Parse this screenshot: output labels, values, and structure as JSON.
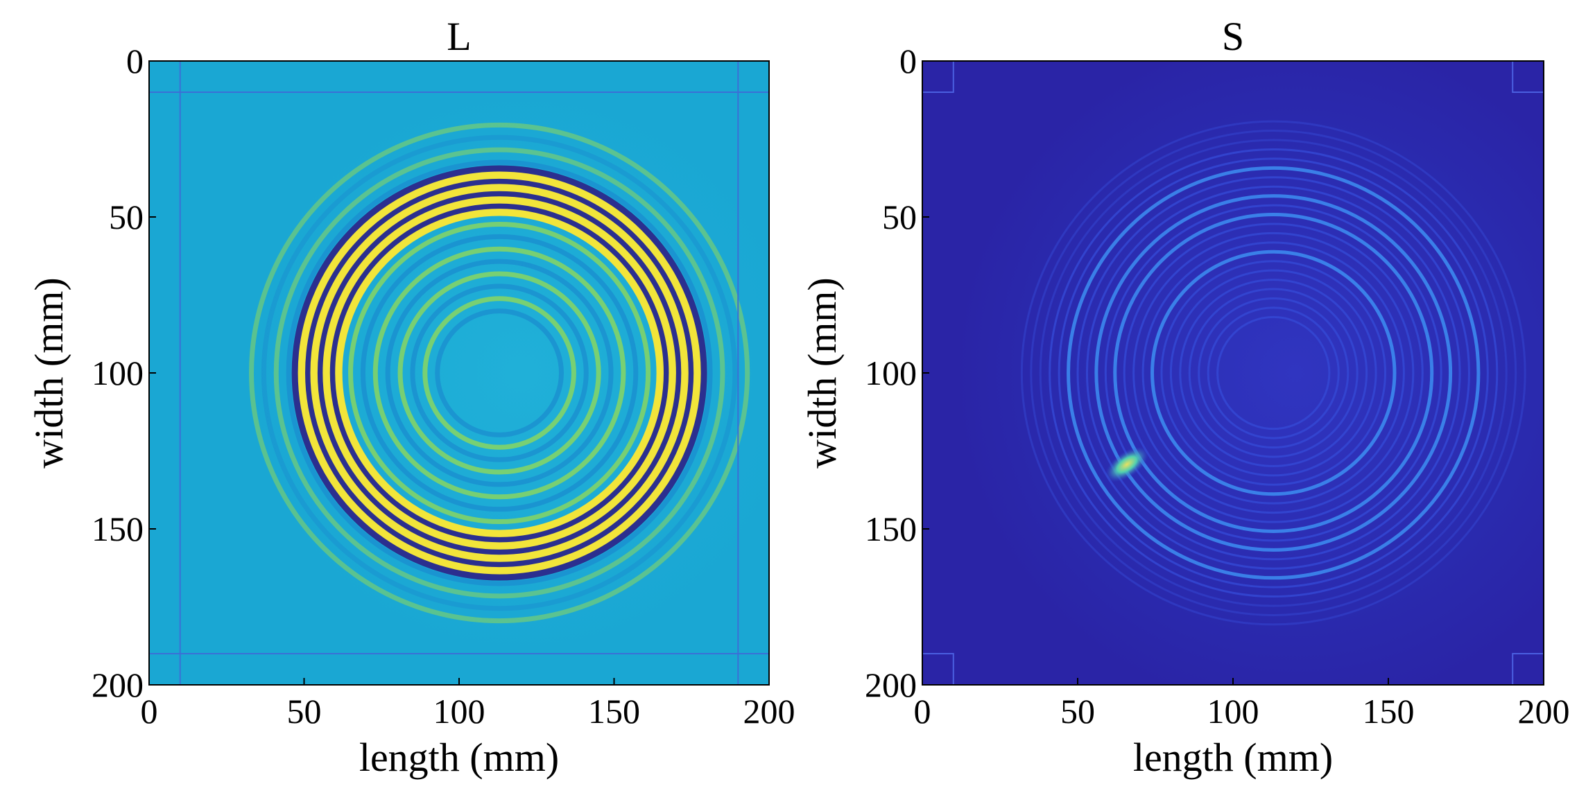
{
  "chart_data": [
    {
      "type": "heatmap",
      "title": "L",
      "xlabel": "length (mm)",
      "ylabel": "width (mm)",
      "xlim": [
        0,
        200
      ],
      "ylim": [
        0,
        200
      ],
      "y_reversed": true,
      "xticks": [
        0,
        50,
        100,
        150,
        200
      ],
      "yticks": [
        0,
        50,
        100,
        150,
        200
      ],
      "colormap": "parula",
      "background_color": "#1aa7d3",
      "description_values": {
        "ring_center_mm": [
          113,
          100
        ],
        "dominant_ring_radii_mm": [
          52,
          56,
          60,
          64
        ],
        "boundary_lines_mm": {
          "x": [
            10,
            190
          ],
          "y": [
            10,
            190
          ]
        }
      }
    },
    {
      "type": "heatmap",
      "title": "S",
      "xlabel": "length (mm)",
      "ylabel": "width (mm)",
      "xlim": [
        0,
        200
      ],
      "ylim": [
        0,
        200
      ],
      "y_reversed": true,
      "xticks": [
        0,
        50,
        100,
        150,
        200
      ],
      "yticks": [
        0,
        50,
        100,
        150,
        200
      ],
      "colormap": "parula",
      "background_color": "#2a24a6",
      "description_values": {
        "ring_center_mm": [
          113,
          100
        ],
        "dominant_ring_radii_mm": [
          40,
          50,
          58,
          66
        ],
        "hotspot_mm": [
          66,
          130
        ],
        "boundary_lines_mm": {
          "x": [
            10,
            190
          ],
          "y": [
            10,
            190
          ]
        }
      }
    }
  ]
}
